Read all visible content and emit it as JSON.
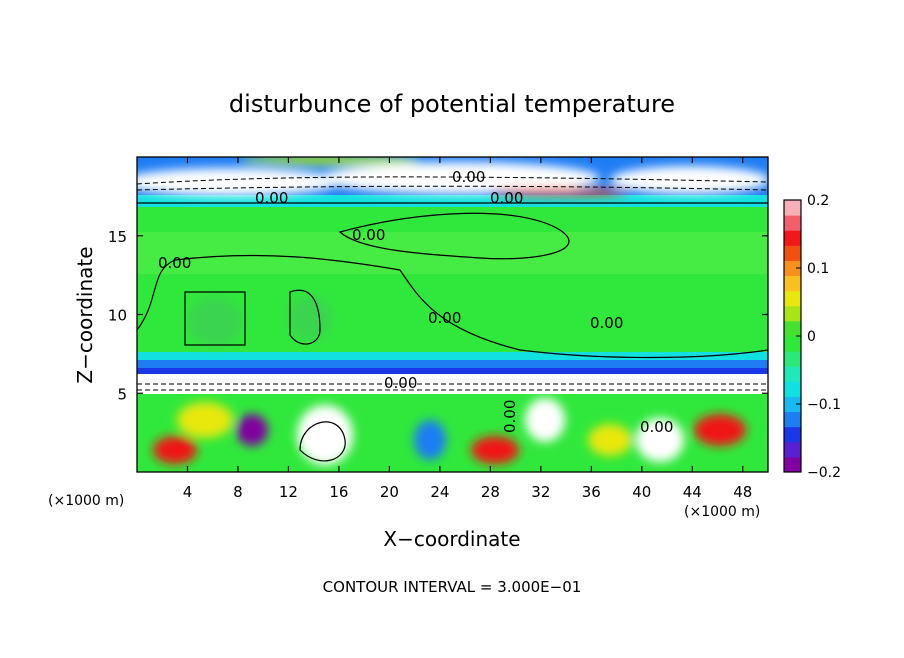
{
  "chart_data": {
    "type": "heatmap",
    "title": "disturbunce of potential temperature",
    "xlabel": "X−coordinate",
    "ylabel": "Z−coordinate",
    "x_unit_left": "(×1000 m)",
    "x_unit_right": "(×1000 m)",
    "xlim": [
      0,
      50
    ],
    "ylim": [
      0,
      20
    ],
    "x_ticks": [
      "4",
      "8",
      "12",
      "16",
      "20",
      "24",
      "28",
      "32",
      "36",
      "40",
      "44",
      "48"
    ],
    "y_ticks": [
      "5",
      "10",
      "15"
    ],
    "colorbar": {
      "range": [
        -0.2,
        0.2
      ],
      "ticks": [
        "0.2",
        "0.1",
        "0",
        "−0.1",
        "−0.2"
      ],
      "colors": [
        "#8000a0",
        "#5a1fd0",
        "#1b38e8",
        "#1f7df4",
        "#18b8f0",
        "#12e0e0",
        "#20e8b8",
        "#2ce878",
        "#30e83c",
        "#46e030",
        "#a8e418",
        "#e8e810",
        "#f8c020",
        "#f89020",
        "#f05010",
        "#f01818",
        "#f0606c",
        "#f8b0b8"
      ]
    },
    "contour_labels": [
      "0.00",
      "0.00",
      "0.00",
      "0.00",
      "0.00",
      "0.00",
      "0.00",
      "0.00",
      "0.00",
      "0.00"
    ],
    "footer": "CONTOUR INTERVAL = 3.000E−01"
  }
}
